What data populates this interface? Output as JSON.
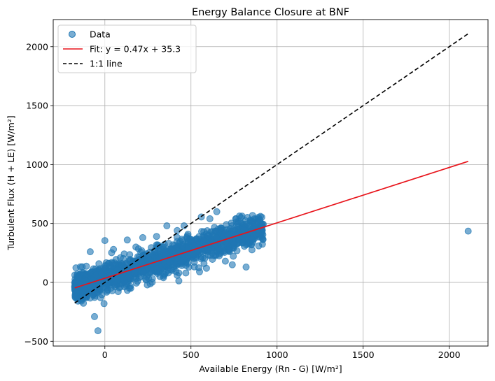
{
  "chart_data": {
    "type": "scatter",
    "title": "Energy Balance Closure at BNF",
    "xlabel": "Available Energy (Rn - G) [W/m²]",
    "ylabel": "Turbulent Flux (H + LE) [W/m²]",
    "xlim": [
      -300,
      2225
    ],
    "ylim": [
      -540,
      2230
    ],
    "xticks": [
      0,
      500,
      1000,
      1500,
      2000
    ],
    "yticks": [
      -500,
      0,
      500,
      1000,
      1500,
      2000
    ],
    "grid": true,
    "legend_position": "top-left",
    "colors": {
      "scatter": "#1f77b4",
      "fit": "#e8141b",
      "identity": "#000000"
    },
    "legend": [
      {
        "label": "Data",
        "kind": "marker"
      },
      {
        "label": "Fit: y = 0.47x + 35.3",
        "kind": "solid-line"
      },
      {
        "label": "1:1 line",
        "kind": "dashed-line"
      }
    ],
    "fit": {
      "slope": 0.47,
      "intercept": 35.3,
      "x_range": [
        -175,
        2110
      ]
    },
    "identity_line": {
      "x_range": [
        -175,
        2110
      ]
    },
    "scatter_cloud": {
      "x_range": [
        -175,
        920
      ],
      "slope": 0.47,
      "intercept": 35.3,
      "spread": 60
    },
    "scatter_points": [
      [
        -40,
        -410
      ],
      [
        -60,
        -290
      ],
      [
        -5,
        -180
      ],
      [
        -25,
        -130
      ],
      [
        -85,
        260
      ],
      [
        0,
        355
      ],
      [
        50,
        280
      ],
      [
        130,
        360
      ],
      [
        180,
        300
      ],
      [
        220,
        380
      ],
      [
        300,
        390
      ],
      [
        360,
        480
      ],
      [
        420,
        440
      ],
      [
        460,
        480
      ],
      [
        560,
        555
      ],
      [
        610,
        540
      ],
      [
        650,
        600
      ],
      [
        760,
        540
      ],
      [
        790,
        550
      ],
      [
        850,
        510
      ],
      [
        870,
        470
      ],
      [
        900,
        530
      ],
      [
        915,
        480
      ],
      [
        820,
        130
      ],
      [
        700,
        180
      ],
      [
        740,
        150
      ],
      [
        590,
        120
      ],
      [
        550,
        90
      ],
      [
        470,
        80
      ],
      [
        420,
        60
      ],
      [
        340,
        40
      ],
      [
        320,
        50
      ],
      [
        240,
        20
      ],
      [
        190,
        10
      ],
      [
        150,
        -50
      ],
      [
        120,
        -10
      ],
      [
        90,
        -40
      ],
      [
        60,
        -20
      ],
      [
        -120,
        -60
      ],
      [
        -150,
        -40
      ],
      [
        2110,
        435
      ]
    ]
  }
}
